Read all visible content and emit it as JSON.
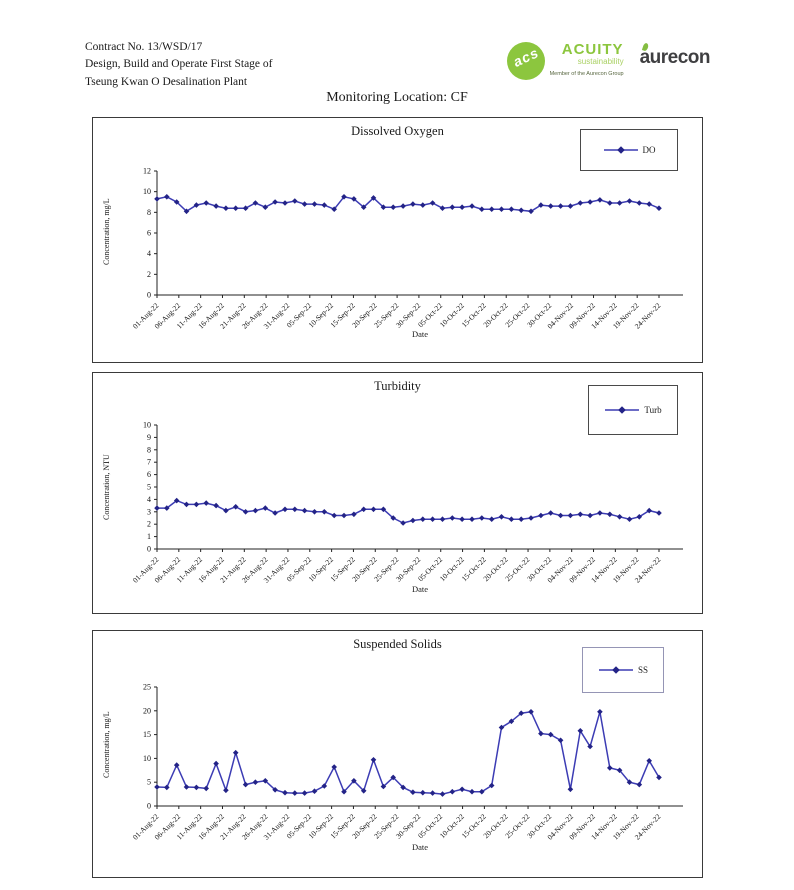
{
  "page": {
    "contract_line1": "Contract No. 13/WSD/17",
    "contract_line2": "Design, Build and Operate First Stage of",
    "contract_line3": "Tseung Kwan O Desalination Plant",
    "title": "Monitoring Location: CF"
  },
  "logos": {
    "acuity_mark": "acs",
    "acuity_name": "ACUITY",
    "acuity_sub": "sustainability",
    "acuity_tagline": "Member of the Aurecon Group",
    "aurecon_name": "aurecon"
  },
  "colors": {
    "line": "#3c3cb4",
    "marker": "#232387",
    "axis": "#222222",
    "accent_green": "#8cc63e"
  },
  "chart_data": [
    {
      "type": "line",
      "title": "Dissolved Oxygen",
      "legend": "DO",
      "xlabel": "Date",
      "ylabel": "Concentration, mg/L",
      "ylim": [
        0,
        12
      ],
      "ytick_step": 2,
      "x_ticks": [
        "01-Aug-22",
        "06-Aug-22",
        "11-Aug-22",
        "16-Aug-22",
        "21-Aug-22",
        "26-Aug-22",
        "31-Aug-22",
        "05-Sep-22",
        "10-Sep-22",
        "15-Sep-22",
        "20-Sep-22",
        "25-Sep-22",
        "30-Sep-22",
        "05-Oct-22",
        "10-Oct-22",
        "15-Oct-22",
        "20-Oct-22",
        "25-Oct-22",
        "30-Oct-22",
        "04-Nov-22",
        "09-Nov-22",
        "14-Nov-22",
        "19-Nov-22",
        "24-Nov-22"
      ],
      "values": [
        9.3,
        9.5,
        9.0,
        8.1,
        8.7,
        8.9,
        8.6,
        8.4,
        8.4,
        8.4,
        8.9,
        8.5,
        9.0,
        8.9,
        9.1,
        8.8,
        8.8,
        8.7,
        8.3,
        9.5,
        9.3,
        8.5,
        9.4,
        8.5,
        8.5,
        8.6,
        8.8,
        8.7,
        8.9,
        8.4,
        8.5,
        8.5,
        8.6,
        8.3,
        8.3,
        8.3,
        8.3,
        8.2,
        8.1,
        8.7,
        8.6,
        8.6,
        8.6,
        8.9,
        9.0,
        9.2,
        8.9,
        8.9,
        9.1,
        8.9,
        8.8,
        8.4
      ]
    },
    {
      "type": "line",
      "title": "Turbidity",
      "legend": "Turb",
      "xlabel": "Date",
      "ylabel": "Concentration, NTU",
      "ylim": [
        0,
        10
      ],
      "ytick_step": 1,
      "x_ticks": [
        "01-Aug-22",
        "06-Aug-22",
        "11-Aug-22",
        "16-Aug-22",
        "21-Aug-22",
        "26-Aug-22",
        "31-Aug-22",
        "05-Sep-22",
        "10-Sep-22",
        "15-Sep-22",
        "20-Sep-22",
        "25-Sep-22",
        "30-Sep-22",
        "05-Oct-22",
        "10-Oct-22",
        "15-Oct-22",
        "20-Oct-22",
        "25-Oct-22",
        "30-Oct-22",
        "04-Nov-22",
        "09-Nov-22",
        "14-Nov-22",
        "19-Nov-22",
        "24-Nov-22"
      ],
      "values": [
        3.3,
        3.3,
        3.9,
        3.6,
        3.6,
        3.7,
        3.5,
        3.1,
        3.4,
        3.0,
        3.1,
        3.3,
        2.9,
        3.2,
        3.2,
        3.1,
        3.0,
        3.0,
        2.7,
        2.7,
        2.8,
        3.2,
        3.2,
        3.2,
        2.5,
        2.1,
        2.3,
        2.4,
        2.4,
        2.4,
        2.5,
        2.4,
        2.4,
        2.5,
        2.4,
        2.6,
        2.4,
        2.4,
        2.5,
        2.7,
        2.9,
        2.7,
        2.7,
        2.8,
        2.7,
        2.9,
        2.8,
        2.6,
        2.4,
        2.6,
        3.1,
        2.9
      ]
    },
    {
      "type": "line",
      "title": "Suspended Solids",
      "legend": "SS",
      "xlabel": "Date",
      "ylabel": "Concentration, mg/L",
      "ylim": [
        0,
        25
      ],
      "ytick_step": 5,
      "x_ticks": [
        "01-Aug-22",
        "06-Aug-22",
        "11-Aug-22",
        "16-Aug-22",
        "21-Aug-22",
        "26-Aug-22",
        "31-Aug-22",
        "05-Sep-22",
        "10-Sep-22",
        "15-Sep-22",
        "20-Sep-22",
        "25-Sep-22",
        "30-Sep-22",
        "05-Oct-22",
        "10-Oct-22",
        "15-Oct-22",
        "20-Oct-22",
        "25-Oct-22",
        "30-Oct-22",
        "04-Nov-22",
        "09-Nov-22",
        "14-Nov-22",
        "19-Nov-22",
        "24-Nov-22"
      ],
      "values": [
        4.0,
        3.9,
        8.6,
        4.0,
        3.9,
        3.7,
        8.9,
        3.3,
        11.2,
        4.5,
        5.0,
        5.3,
        3.4,
        2.8,
        2.7,
        2.7,
        3.1,
        4.2,
        8.2,
        3.0,
        5.3,
        3.2,
        9.7,
        4.1,
        6.0,
        3.9,
        2.9,
        2.8,
        2.7,
        2.5,
        3.0,
        3.5,
        3.0,
        3.0,
        4.3,
        16.5,
        17.8,
        19.5,
        19.8,
        15.2,
        15.0,
        13.8,
        3.5,
        15.8,
        12.5,
        19.8,
        8.0,
        7.5,
        5.0,
        4.5,
        9.5,
        6.0
      ]
    }
  ]
}
